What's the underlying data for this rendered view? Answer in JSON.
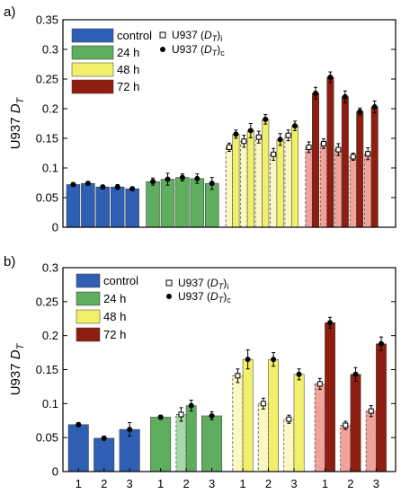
{
  "chart_data": [
    {
      "type": "bar",
      "panel_label": "a)",
      "ylabel_main": "U937",
      "ylabel_var": "D",
      "ylabel_sub": "T",
      "ylim": [
        0,
        0.35
      ],
      "yticks": [
        "0",
        "0.05",
        "0.1",
        "0.15",
        "0.2",
        "0.25",
        "0.3",
        "0.35"
      ],
      "grid": false,
      "legend_groups": [
        {
          "name": "control",
          "color": "#2f5fb5"
        },
        {
          "name": "24 h",
          "color": "#5fad5f"
        },
        {
          "name": "48 h",
          "color": "#f2f06a"
        },
        {
          "name": "72 h",
          "color": "#8f1e10"
        }
      ],
      "legend_markers": [
        {
          "label_main": "U937 (",
          "label_var": "D",
          "label_sub": "T",
          "label_close": ")",
          "label_index": "i",
          "marker": "open-square"
        },
        {
          "label_main": "U937 (",
          "label_var": "D",
          "label_sub": "T",
          "label_close": ")",
          "label_index": "c",
          "marker": "filled-circle"
        }
      ],
      "groups": [
        {
          "name": "control",
          "bars": [
            {
              "c": 0.072,
              "c_err": 0.003
            },
            {
              "c": 0.074,
              "c_err": 0.003
            },
            {
              "c": 0.068,
              "c_err": 0.003
            },
            {
              "c": 0.068,
              "c_err": 0.004
            },
            {
              "c": 0.065,
              "c_err": 0.003
            }
          ]
        },
        {
          "name": "24 h",
          "bars": [
            {
              "c": 0.077,
              "c_err": 0.006
            },
            {
              "c": 0.081,
              "c_err": 0.01
            },
            {
              "c": 0.084,
              "c_err": 0.006
            },
            {
              "c": 0.082,
              "c_err": 0.008
            },
            {
              "c": 0.074,
              "c_err": 0.01
            }
          ]
        },
        {
          "name": "48 h",
          "bars": [
            {
              "i": 0.135,
              "i_err": 0.007,
              "c": 0.157,
              "c_err": 0.007
            },
            {
              "i": 0.145,
              "i_err": 0.01,
              "c": 0.163,
              "c_err": 0.012
            },
            {
              "i": 0.152,
              "i_err": 0.01,
              "c": 0.182,
              "c_err": 0.008
            },
            {
              "i": 0.123,
              "i_err": 0.01,
              "c": 0.148,
              "c_err": 0.01
            },
            {
              "i": 0.155,
              "i_err": 0.009,
              "c": 0.171,
              "c_err": 0.008
            }
          ]
        },
        {
          "name": "72 h",
          "bars": [
            {
              "i": 0.135,
              "i_err": 0.009,
              "c": 0.226,
              "c_err": 0.01
            },
            {
              "i": 0.141,
              "i_err": 0.008,
              "c": 0.253,
              "c_err": 0.009
            },
            {
              "i": 0.131,
              "i_err": 0.01,
              "c": 0.22,
              "c_err": 0.01
            },
            {
              "i": 0.119,
              "i_err": 0.006,
              "c": 0.195,
              "c_err": 0.006
            },
            {
              "i": 0.124,
              "i_err": 0.01,
              "c": 0.203,
              "c_err": 0.01
            }
          ]
        }
      ]
    },
    {
      "type": "bar",
      "panel_label": "b)",
      "ylabel_main": "U937",
      "ylabel_var": "D",
      "ylabel_sub": "T",
      "ylim": [
        0,
        0.3
      ],
      "yticks": [
        "0",
        "0.05",
        "0.1",
        "0.15",
        "0.2",
        "0.25",
        "0.3"
      ],
      "grid": false,
      "categories": [
        "1",
        "2",
        "3",
        "1",
        "2",
        "3",
        "1",
        "2",
        "3",
        "1",
        "2",
        "3"
      ],
      "legend_groups": [
        {
          "name": "control",
          "color": "#2f5fb5"
        },
        {
          "name": "24 h",
          "color": "#5fad5f"
        },
        {
          "name": "48 h",
          "color": "#f2f06a"
        },
        {
          "name": "72 h",
          "color": "#8f1e10"
        }
      ],
      "legend_markers": [
        {
          "label_main": "U937 (",
          "label_var": "D",
          "label_sub": "T",
          "label_close": ")",
          "label_index": "i",
          "marker": "open-square"
        },
        {
          "label_main": "U937 (",
          "label_var": "D",
          "label_sub": "T",
          "label_close": ")",
          "label_index": "c",
          "marker": "filled-circle"
        }
      ],
      "groups": [
        {
          "name": "control",
          "bars": [
            {
              "c": 0.069,
              "c_err": 0.003
            },
            {
              "c": 0.049,
              "c_err": 0.003
            },
            {
              "c": 0.062,
              "c_err": 0.01
            }
          ]
        },
        {
          "name": "24 h",
          "bars": [
            {
              "c": 0.08,
              "c_err": 0.003
            },
            {
              "i": 0.084,
              "i_err": 0.01,
              "c": 0.097,
              "c_err": 0.008
            },
            {
              "c": 0.082,
              "c_err": 0.006
            }
          ]
        },
        {
          "name": "48 h",
          "bars": [
            {
              "i": 0.141,
              "i_err": 0.01,
              "c": 0.165,
              "c_err": 0.014
            },
            {
              "i": 0.1,
              "i_err": 0.008,
              "c": 0.165,
              "c_err": 0.01
            },
            {
              "i": 0.077,
              "i_err": 0.006,
              "c": 0.143,
              "c_err": 0.008
            }
          ]
        },
        {
          "name": "72 h",
          "bars": [
            {
              "i": 0.129,
              "i_err": 0.008,
              "c": 0.219,
              "c_err": 0.008
            },
            {
              "i": 0.068,
              "i_err": 0.006,
              "c": 0.143,
              "c_err": 0.01
            },
            {
              "i": 0.089,
              "i_err": 0.008,
              "c": 0.188,
              "c_err": 0.01
            }
          ]
        }
      ]
    }
  ]
}
